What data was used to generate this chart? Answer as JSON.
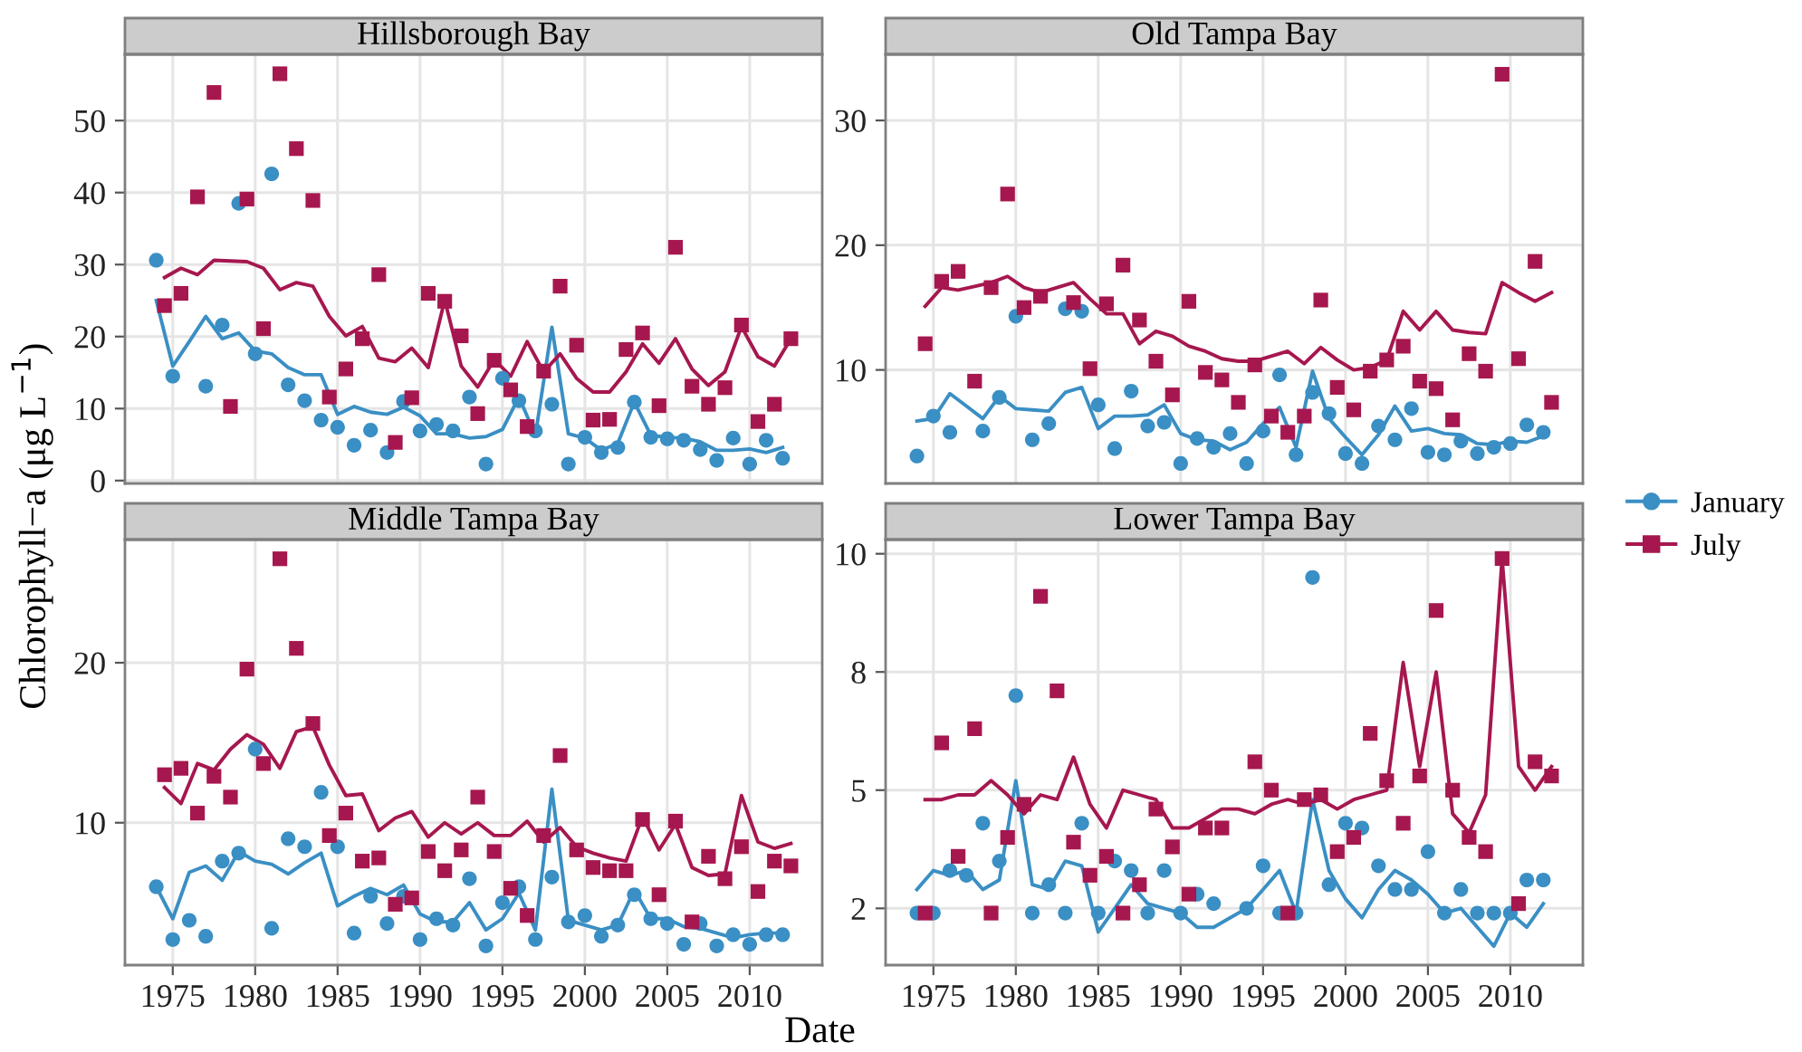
{
  "chart_data": [
    {
      "type": "scatter",
      "title": "Hillsborough Bay",
      "ylabel": "Chlorophyll−a (μg L$^{−1}$)",
      "grid": true,
      "tick_labels": "y",
      "legend": "right",
      "xlim": [
        1972.1,
        2014.4
      ],
      "xticks": [
        1975,
        1980,
        1985,
        1990,
        1995,
        2000,
        2005,
        2010
      ],
      "ylim": [
        -0.4,
        59.2
      ],
      "yticks": [
        0,
        10,
        20,
        30,
        40,
        50
      ],
      "x": [
        1974,
        1975,
        1976,
        1977,
        1978,
        1979,
        1980,
        1981,
        1982,
        1983,
        1984,
        1985,
        1986,
        1987,
        1988,
        1989,
        1990,
        1991,
        1992,
        1993,
        1994,
        1995,
        1996,
        1997,
        1998,
        1999,
        2000,
        2001,
        2002,
        2003,
        2004,
        2005,
        2006,
        2007,
        2008,
        2009,
        2010,
        2011,
        2012
      ],
      "series": [
        {
          "name": "January",
          "marker": "circle",
          "color": "#3a8fc4",
          "values": [
            30.6,
            14.5,
            null,
            13.1,
            21.6,
            38.5,
            17.6,
            42.6,
            13.3,
            11.1,
            8.4,
            7.4,
            4.9,
            7.0,
            3.9,
            11.0,
            6.9,
            7.8,
            6.9,
            11.6,
            2.3,
            14.2,
            11.1,
            6.9,
            10.6,
            2.3,
            6.0,
            3.9,
            4.6,
            10.9,
            6.0,
            5.8,
            5.6,
            4.3,
            2.8,
            5.9,
            2.3,
            5.6,
            3.1
          ]
        },
        {
          "name": "July",
          "type": "scatter",
          "marker": "square",
          "color": "#a6174f",
          "x": [
            1974.5,
            1975.5,
            1976.5,
            1977.5,
            1978.5,
            1979.5,
            1980.5,
            1981.5,
            1982.5,
            1983.5,
            1984.5,
            1985.5,
            1986.5,
            1987.5,
            1988.5,
            1989.5,
            1990.5,
            1991.5,
            1992.5,
            1993.5,
            1994.5,
            1995.5,
            1996.5,
            1997.5,
            1998.5,
            1999.5,
            2000.5,
            2001.5,
            2002.5,
            2003.5,
            2004.5,
            2005.5,
            2006.5,
            2007.5,
            2008.5,
            2009.5,
            2010.5,
            2011.5,
            2012.5
          ],
          "values": [
            24.3,
            26.0,
            39.4,
            53.9,
            10.3,
            39.1,
            21.1,
            56.5,
            46.1,
            38.9,
            11.6,
            15.5,
            19.7,
            28.6,
            5.3,
            11.5,
            26.0,
            24.9,
            20.1,
            9.3,
            16.7,
            12.6,
            7.5,
            15.2,
            27.0,
            18.8,
            8.4,
            8.5,
            18.2,
            20.5,
            10.4,
            32.4,
            13.1,
            10.6,
            12.9,
            21.6,
            8.2,
            10.6,
            19.7
          ]
        },
        {
          "type": "line",
          "color": "#3a8fc4",
          "values": [
            25.0,
            15.9,
            19.3,
            22.8,
            19.7,
            20.5,
            18.0,
            17.6,
            15.7,
            14.7,
            14.7,
            9.2,
            10.3,
            9.5,
            9.2,
            10.2,
            9.0,
            6.5,
            6.5,
            5.9,
            6.1,
            7.1,
            11.6,
            6.3,
            21.3,
            6.5,
            5.9,
            4.2,
            5.2,
            10.9,
            6.3,
            6.0,
            5.9,
            5.4,
            4.2,
            4.2,
            4.4,
            3.9,
            4.6
          ]
        },
        {
          "type": "line",
          "color": "#a6174f",
          "x": [
            1974.5,
            1975.5,
            1976.5,
            1977.5,
            1978.5,
            1979.5,
            1980.5,
            1981.5,
            1982.5,
            1983.5,
            1984.5,
            1985.5,
            1986.5,
            1987.5,
            1988.5,
            1989.5,
            1990.5,
            1991.5,
            1992.5,
            1993.5,
            1994.5,
            1995.5,
            1996.5,
            1997.5,
            1998.5,
            1999.5,
            2000.5,
            2001.5,
            2002.5,
            2003.5,
            2004.5,
            2005.5,
            2006.5,
            2007.5,
            2008.5,
            2009.5,
            2010.5,
            2011.5,
            2012.5
          ],
          "values": [
            28.2,
            29.5,
            28.6,
            30.6,
            30.5,
            30.4,
            29.5,
            26.5,
            27.5,
            27.0,
            22.8,
            20.1,
            21.4,
            17.0,
            16.5,
            18.4,
            15.7,
            25.1,
            15.9,
            13.0,
            16.8,
            14.5,
            19.3,
            15.1,
            17.6,
            14.2,
            12.3,
            12.3,
            15.1,
            19.0,
            16.3,
            19.7,
            15.5,
            13.2,
            15.1,
            21.4,
            17.2,
            15.9,
            19.7
          ]
        }
      ]
    },
    {
      "type": "scatter",
      "title": "Old Tampa Bay",
      "grid": true,
      "tick_labels": "y",
      "xlim": [
        1972.1,
        2014.4
      ],
      "xticks": [
        1975,
        1980,
        1985,
        1990,
        1995,
        2000,
        2005,
        2010
      ],
      "ylim": [
        0.9,
        35.3
      ],
      "yticks": [
        10,
        20,
        30
      ],
      "x": [
        1974,
        1975,
        1976,
        1977,
        1978,
        1979,
        1980,
        1981,
        1982,
        1983,
        1984,
        1985,
        1986,
        1987,
        1988,
        1989,
        1990,
        1991,
        1992,
        1993,
        1994,
        1995,
        1996,
        1997,
        1998,
        1999,
        2000,
        2001,
        2002,
        2003,
        2004,
        2005,
        2006,
        2007,
        2008,
        2009,
        2010,
        2011,
        2012
      ],
      "series": [
        {
          "name": "January",
          "marker": "circle",
          "color": "#3a8fc4",
          "values": [
            3.1,
            6.3,
            5.0,
            null,
            5.1,
            7.8,
            14.3,
            4.4,
            5.7,
            14.9,
            14.7,
            7.2,
            3.7,
            8.3,
            5.5,
            5.8,
            2.5,
            4.5,
            3.8,
            4.9,
            2.5,
            5.1,
            9.6,
            3.2,
            8.2,
            6.5,
            3.3,
            2.5,
            5.5,
            4.4,
            6.9,
            3.4,
            3.2,
            4.3,
            3.3,
            3.8,
            4.1,
            5.6,
            5.0
          ]
        },
        {
          "name": "July",
          "type": "scatter",
          "marker": "square",
          "color": "#a6174f",
          "x": [
            1974.5,
            1975.5,
            1976.5,
            1977.5,
            1978.5,
            1979.5,
            1980.5,
            1981.5,
            1982.5,
            1983.5,
            1984.5,
            1985.5,
            1986.5,
            1987.5,
            1988.5,
            1989.5,
            1990.5,
            1991.5,
            1992.5,
            1993.5,
            1994.5,
            1995.5,
            1996.5,
            1997.5,
            1998.5,
            1999.5,
            2000.5,
            2001.5,
            2002.5,
            2003.5,
            2004.5,
            2005.5,
            2006.5,
            2007.5,
            2008.5,
            2009.5,
            2010.5,
            2011.5,
            2012.5
          ],
          "values": [
            12.1,
            17.1,
            17.9,
            9.1,
            16.6,
            24.1,
            15.0,
            15.9,
            null,
            15.4,
            10.1,
            15.3,
            18.4,
            14.0,
            10.7,
            8.0,
            15.5,
            9.8,
            9.2,
            7.4,
            10.4,
            6.3,
            5.0,
            6.3,
            15.6,
            8.6,
            6.8,
            9.9,
            10.8,
            11.9,
            9.1,
            8.5,
            6.0,
            11.3,
            9.9,
            33.7,
            10.9,
            18.7,
            7.4
          ]
        },
        {
          "type": "line",
          "color": "#3a8fc4",
          "values": [
            5.9,
            6.1,
            8.1,
            7.1,
            6.1,
            7.9,
            6.9,
            6.8,
            6.7,
            8.2,
            8.6,
            5.3,
            6.3,
            6.3,
            6.4,
            7.2,
            4.9,
            4.4,
            4.3,
            3.6,
            4.2,
            5.7,
            7.0,
            3.8,
            9.9,
            6.1,
            4.6,
            3.2,
            4.8,
            7.1,
            5.1,
            5.3,
            4.9,
            4.8,
            4.1,
            4.0,
            4.3,
            4.2,
            4.7
          ]
        },
        {
          "type": "line",
          "color": "#a6174f",
          "x": [
            1974.5,
            1975.5,
            1976.5,
            1977.5,
            1978.5,
            1979.5,
            1980.5,
            1981.5,
            1982.5,
            1983.5,
            1984.5,
            1985.5,
            1986.5,
            1987.5,
            1988.5,
            1989.5,
            1990.5,
            1991.5,
            1992.5,
            1993.5,
            1994.5,
            1995.5,
            1996.5,
            1997.5,
            1998.5,
            1999.5,
            2000.5,
            2001.5,
            2002.5,
            2003.5,
            2004.5,
            2005.5,
            2006.5,
            2007.5,
            2008.5,
            2009.5,
            2010.5,
            2011.5,
            2012.5
          ],
          "values": [
            15.1,
            16.6,
            16.4,
            16.7,
            17.0,
            17.5,
            16.6,
            16.2,
            16.6,
            17.0,
            15.7,
            14.5,
            14.5,
            12.1,
            13.1,
            12.7,
            11.9,
            11.5,
            10.9,
            10.7,
            10.7,
            11.1,
            11.5,
            10.5,
            11.8,
            10.8,
            10.0,
            10.2,
            10.8,
            14.7,
            13.2,
            14.7,
            13.2,
            13.0,
            12.9,
            17.0,
            16.2,
            15.5,
            16.2
          ]
        }
      ]
    },
    {
      "type": "scatter",
      "title": "Middle Tampa Bay",
      "xlabel": "Date",
      "grid": true,
      "xlim": [
        1972.1,
        2014.4
      ],
      "xticks": [
        1975,
        1980,
        1985,
        1990,
        1995,
        2000,
        2005,
        2010
      ],
      "ylim": [
        1.1,
        27.7
      ],
      "yticks": [
        10,
        20
      ],
      "x": [
        1974,
        1975,
        1976,
        1977,
        1978,
        1979,
        1980,
        1981,
        1982,
        1983,
        1984,
        1985,
        1986,
        1987,
        1988,
        1989,
        1990,
        1991,
        1992,
        1993,
        1994,
        1995,
        1996,
        1997,
        1998,
        1999,
        2000,
        2001,
        2002,
        2003,
        2004,
        2005,
        2006,
        2007,
        2008,
        2009,
        2010,
        2011,
        2012
      ],
      "series": [
        {
          "name": "January",
          "marker": "circle",
          "color": "#3a8fc4",
          "values": [
            6.0,
            2.7,
            3.9,
            2.9,
            7.6,
            8.1,
            14.6,
            3.4,
            9.0,
            8.5,
            11.9,
            8.5,
            3.1,
            5.4,
            3.7,
            5.4,
            2.7,
            4.0,
            3.6,
            6.5,
            2.3,
            5.0,
            6.0,
            2.7,
            6.6,
            3.8,
            4.2,
            2.9,
            3.6,
            5.5,
            4.0,
            3.7,
            2.4,
            3.7,
            2.3,
            3.0,
            2.4,
            3.0,
            3.0
          ]
        },
        {
          "name": "July",
          "type": "scatter",
          "marker": "square",
          "color": "#a6174f",
          "x": [
            1974.5,
            1975.5,
            1976.5,
            1977.5,
            1978.5,
            1979.5,
            1980.5,
            1981.5,
            1982.5,
            1983.5,
            1984.5,
            1985.5,
            1986.5,
            1987.5,
            1988.5,
            1989.5,
            1990.5,
            1991.5,
            1992.5,
            1993.5,
            1994.5,
            1995.5,
            1996.5,
            1997.5,
            1998.5,
            1999.5,
            2000.5,
            2001.5,
            2002.5,
            2003.5,
            2004.5,
            2005.5,
            2006.5,
            2007.5,
            2008.5,
            2009.5,
            2010.5,
            2011.5,
            2012.5
          ],
          "values": [
            13.0,
            13.4,
            10.6,
            12.9,
            11.6,
            19.6,
            13.7,
            26.5,
            20.9,
            16.2,
            9.2,
            10.6,
            7.6,
            7.8,
            4.9,
            5.3,
            8.2,
            7.0,
            8.3,
            11.6,
            8.2,
            5.9,
            4.2,
            9.2,
            14.2,
            8.3,
            7.2,
            7.0,
            7.0,
            10.2,
            5.5,
            10.1,
            3.8,
            7.9,
            6.5,
            8.5,
            5.7,
            7.6,
            7.3
          ]
        },
        {
          "type": "line",
          "color": "#3a8fc4",
          "values": [
            6.0,
            4.0,
            6.9,
            7.3,
            6.4,
            8.2,
            7.6,
            7.4,
            6.8,
            7.5,
            8.1,
            4.8,
            5.4,
            5.9,
            5.5,
            6.1,
            4.3,
            3.8,
            3.8,
            5.0,
            3.3,
            4.0,
            5.6,
            3.3,
            12.1,
            3.9,
            3.6,
            3.3,
            3.6,
            5.8,
            4.0,
            4.0,
            3.5,
            3.4,
            3.1,
            2.8,
            3.0,
            3.1,
            3.1
          ]
        },
        {
          "type": "line",
          "color": "#a6174f",
          "x": [
            1974.5,
            1975.5,
            1976.5,
            1977.5,
            1978.5,
            1979.5,
            1980.5,
            1981.5,
            1982.5,
            1983.5,
            1984.5,
            1985.5,
            1986.5,
            1987.5,
            1988.5,
            1989.5,
            1990.5,
            1991.5,
            1992.5,
            1993.5,
            1994.5,
            1995.5,
            1996.5,
            1997.5,
            1998.5,
            1999.5,
            2000.5,
            2001.5,
            2002.5,
            2003.5,
            2004.5,
            2005.5,
            2006.5,
            2007.5,
            2008.5,
            2009.5,
            2010.5,
            2011.5,
            2012.5
          ],
          "values": [
            12.2,
            11.2,
            13.7,
            13.3,
            14.6,
            15.5,
            14.9,
            13.4,
            15.7,
            16.0,
            13.6,
            11.7,
            11.8,
            9.5,
            10.3,
            10.7,
            9.1,
            10.0,
            9.3,
            10.0,
            9.2,
            9.2,
            10.1,
            8.8,
            9.7,
            8.5,
            8.1,
            7.8,
            7.6,
            10.4,
            8.3,
            9.9,
            7.2,
            6.7,
            6.8,
            11.7,
            8.8,
            8.4,
            8.7
          ]
        }
      ]
    },
    {
      "type": "scatter",
      "title": "Lower Tampa Bay",
      "grid": true,
      "xlim": [
        1972.1,
        2014.4
      ],
      "xticks": [
        1975,
        1980,
        1985,
        1990,
        1995,
        2000,
        2005,
        2010
      ],
      "ylim": [
        1.3,
        10.3
      ],
      "yticks": [
        {
          "value": 2.5,
          "label": "2"
        },
        5,
        {
          "value": 7.5,
          "label": "8"
        },
        10
      ],
      "x": [
        1974,
        1975,
        1976,
        1977,
        1978,
        1979,
        1980,
        1981,
        1982,
        1983,
        1984,
        1985,
        1986,
        1987,
        1988,
        1989,
        1990,
        1991,
        1992,
        1993,
        1994,
        1995,
        1996,
        1997,
        1998,
        1999,
        2000,
        2001,
        2002,
        2003,
        2004,
        2005,
        2006,
        2007,
        2008,
        2009,
        2010,
        2011,
        2012
      ],
      "series": [
        {
          "name": "January",
          "marker": "circle",
          "color": "#3a8fc4",
          "values": [
            2.4,
            2.4,
            3.3,
            3.2,
            4.3,
            3.5,
            7.0,
            2.4,
            3.0,
            2.4,
            4.3,
            2.4,
            3.5,
            3.3,
            2.4,
            3.3,
            2.4,
            2.8,
            2.6,
            null,
            2.5,
            3.4,
            2.4,
            2.4,
            9.5,
            3.0,
            4.3,
            4.2,
            3.4,
            2.9,
            2.9,
            3.7,
            2.4,
            2.9,
            2.4,
            2.4,
            2.4,
            3.1,
            3.1
          ]
        },
        {
          "name": "July",
          "type": "scatter",
          "marker": "square",
          "color": "#a6174f",
          "x": [
            1974.5,
            1975.5,
            1976.5,
            1977.5,
            1978.5,
            1979.5,
            1980.5,
            1981.5,
            1982.5,
            1983.5,
            1984.5,
            1985.5,
            1986.5,
            1987.5,
            1988.5,
            1989.5,
            1990.5,
            1991.5,
            1992.5,
            1993.5,
            1994.5,
            1995.5,
            1996.5,
            1997.5,
            1998.5,
            1999.5,
            2000.5,
            2001.5,
            2002.5,
            2003.5,
            2004.5,
            2005.5,
            2006.5,
            2007.5,
            2008.5,
            2009.5,
            2010.5,
            2011.5,
            2012.5
          ],
          "values": [
            2.4,
            6.0,
            3.6,
            6.3,
            2.4,
            4.0,
            4.7,
            9.1,
            7.1,
            3.9,
            3.2,
            3.6,
            2.4,
            3.0,
            4.6,
            3.8,
            2.8,
            4.2,
            4.2,
            null,
            5.6,
            5.0,
            2.4,
            4.8,
            4.9,
            3.7,
            4.0,
            6.2,
            5.2,
            4.3,
            5.3,
            8.8,
            5.0,
            4.0,
            3.7,
            9.9,
            2.6,
            5.6,
            5.3
          ]
        },
        {
          "type": "line",
          "color": "#3a8fc4",
          "values": [
            2.9,
            3.3,
            3.2,
            3.3,
            2.9,
            3.1,
            5.2,
            3.0,
            2.9,
            3.5,
            3.4,
            2.0,
            2.5,
            3.0,
            2.6,
            2.5,
            2.4,
            2.1,
            2.1,
            2.3,
            2.5,
            2.9,
            3.3,
            2.4,
            4.8,
            3.3,
            2.7,
            2.3,
            2.9,
            3.3,
            3.1,
            2.8,
            2.4,
            2.5,
            2.1,
            1.7,
            2.4,
            2.1,
            2.6
          ]
        },
        {
          "type": "line",
          "color": "#a6174f",
          "x": [
            1974.5,
            1975.5,
            1976.5,
            1977.5,
            1978.5,
            1979.5,
            1980.5,
            1981.5,
            1982.5,
            1983.5,
            1984.5,
            1985.5,
            1986.5,
            1987.5,
            1988.5,
            1989.5,
            1990.5,
            1991.5,
            1992.5,
            1993.5,
            1994.5,
            1995.5,
            1996.5,
            1997.5,
            1998.5,
            1999.5,
            2000.5,
            2001.5,
            2002.5,
            2003.5,
            2004.5,
            2005.5,
            2006.5,
            2007.5,
            2008.5,
            2009.5,
            2010.5,
            2011.5,
            2012.5
          ],
          "values": [
            4.8,
            4.8,
            4.9,
            4.9,
            5.2,
            4.9,
            4.5,
            4.9,
            4.8,
            5.7,
            4.7,
            4.2,
            5.0,
            4.9,
            4.8,
            4.2,
            4.2,
            4.4,
            4.6,
            4.6,
            4.5,
            4.7,
            4.8,
            4.7,
            4.8,
            4.6,
            4.8,
            4.9,
            5.0,
            7.7,
            5.5,
            7.5,
            4.5,
            4.1,
            4.9,
            9.9,
            5.5,
            5.0,
            5.5
          ]
        }
      ]
    }
  ]
}
